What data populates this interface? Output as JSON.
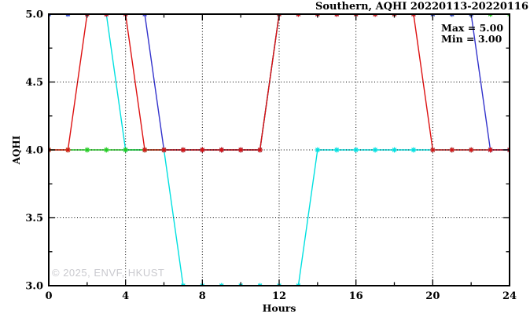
{
  "page": {
    "watermark": "© 2025, ENVF, HKUST"
  },
  "chart_data": {
    "type": "line",
    "title": "Southern, AQHI 20220113-20220116",
    "xlabel": "Hours",
    "ylabel": "AQHI",
    "xlim": [
      0,
      24
    ],
    "ylim": [
      3.0,
      5.0
    ],
    "x_major_ticks": [
      0,
      4,
      8,
      12,
      16,
      20,
      24
    ],
    "x_minor_ticks": [
      2,
      6,
      10,
      14,
      18,
      22
    ],
    "x_tick_labels": [
      "0",
      "4",
      "8",
      "12",
      "16",
      "20",
      "24"
    ],
    "y_major_ticks": [
      3.0,
      3.5,
      4.0,
      4.5,
      5.0
    ],
    "y_minor_ticks": [
      3.25,
      3.75,
      4.25,
      4.75
    ],
    "y_tick_labels": [
      "3.0",
      "3.5",
      "4.0",
      "4.5",
      "5.0"
    ],
    "x_grid": [
      4,
      8,
      12,
      16,
      20
    ],
    "y_grid": [
      3.5,
      4.0,
      4.5
    ],
    "grid": "dotted",
    "legend": "none",
    "marker": "asterisk",
    "annotations": [
      "Max = 5.00",
      "Min = 3.00"
    ],
    "x": [
      0,
      1,
      2,
      3,
      4,
      5,
      6,
      7,
      8,
      9,
      10,
      11,
      12,
      13,
      14,
      15,
      16,
      17,
      18,
      19,
      20,
      21,
      22,
      23,
      24
    ],
    "series": [
      {
        "name": "cyan-line",
        "color": "#00e0e0",
        "values": [
          5,
          5,
          5,
          5,
          4,
          4,
          4,
          3,
          3,
          3,
          3,
          3,
          3,
          3,
          4,
          4,
          4,
          4,
          4,
          4,
          4,
          4,
          4,
          4,
          4
        ]
      },
      {
        "name": "green-line",
        "color": "#22cc22",
        "values": [
          4,
          4,
          4,
          4,
          4,
          4,
          4,
          4,
          4,
          4,
          4,
          4,
          5,
          5,
          5,
          5,
          5,
          5,
          5,
          5,
          5,
          5,
          5,
          5,
          5
        ]
      },
      {
        "name": "blue-line",
        "color": "#3333cc",
        "values": [
          5,
          5,
          5,
          5,
          5,
          5,
          4,
          4,
          4,
          4,
          4,
          4,
          5,
          5,
          5,
          5,
          5,
          5,
          5,
          5,
          5,
          5,
          5,
          4,
          4
        ]
      },
      {
        "name": "red-line",
        "color": "#dd1111",
        "values": [
          4,
          4,
          5,
          5,
          5,
          4,
          4,
          4,
          4,
          4,
          4,
          4,
          5,
          5,
          5,
          5,
          5,
          5,
          5,
          5,
          4,
          4,
          4,
          4,
          4
        ]
      }
    ]
  }
}
